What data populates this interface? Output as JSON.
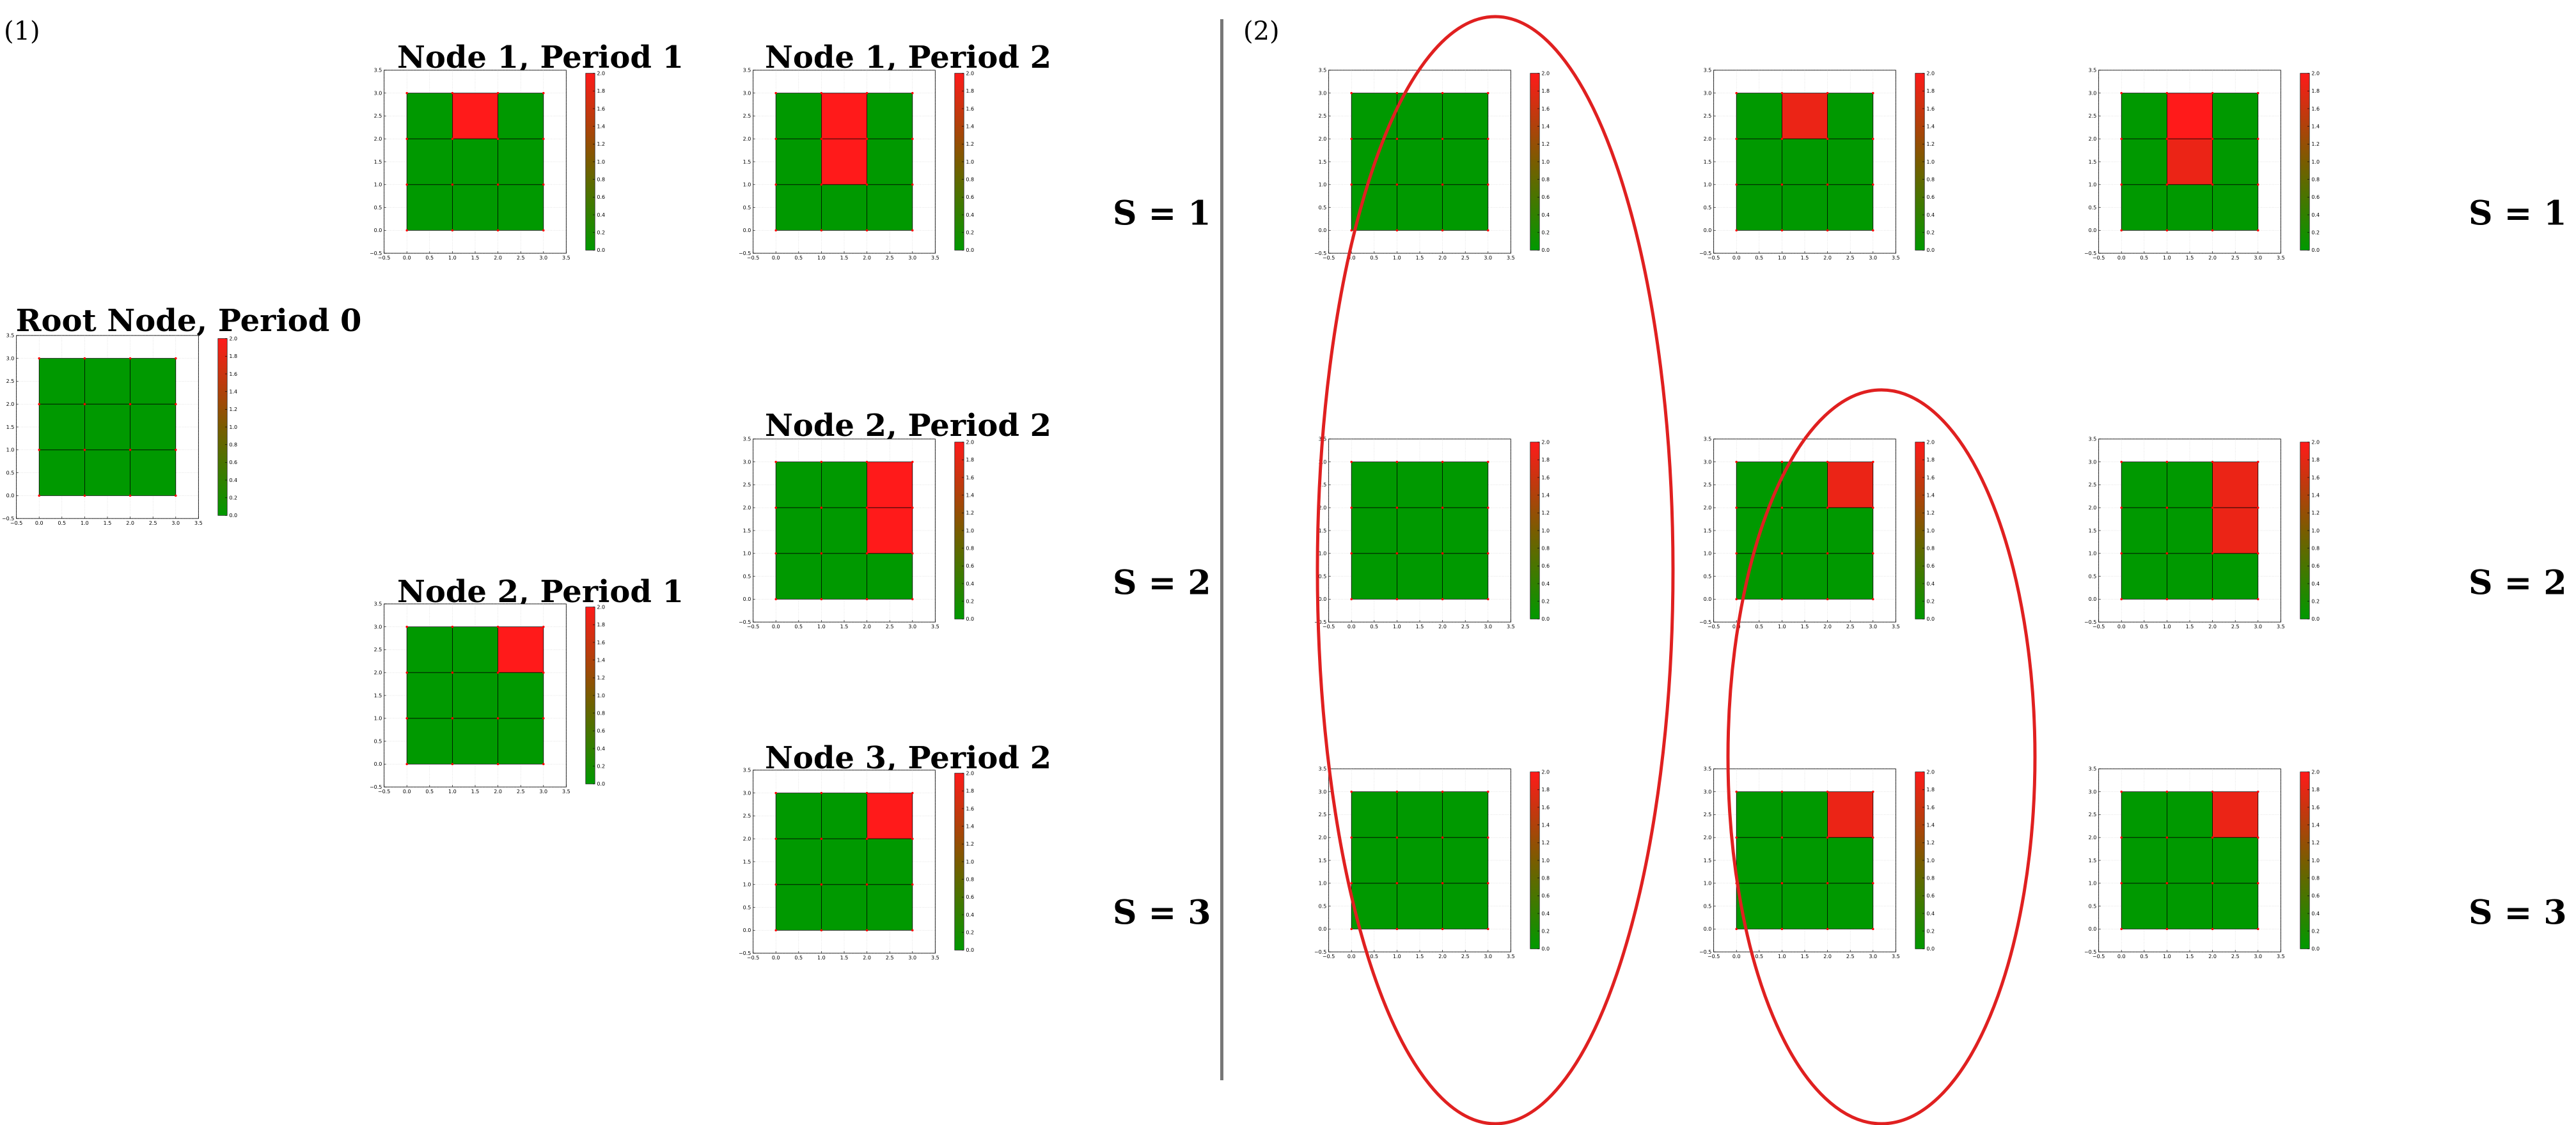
{
  "panels": {
    "left_label": "(1)",
    "right_label": "(2)"
  },
  "scenario_labels": [
    "S = 1",
    "S = 2",
    "S = 3"
  ],
  "colorbar": {
    "min": 0.0,
    "max": 2.0,
    "colors": {
      "low": "#009900",
      "mid": "#7a5c00",
      "high": "#ff1a1a"
    },
    "ticks": [
      "0.0",
      "0.2",
      "0.4",
      "0.6",
      "0.8",
      "1.0",
      "1.2",
      "1.4",
      "1.6",
      "1.8",
      "2.0"
    ]
  },
  "grid_colors": {
    "healthy": "#009900",
    "failed": "#ff0000",
    "node_point": "#ff0000",
    "grid_line": "#000000"
  },
  "chart_data": [
    {
      "type": "heatmap",
      "title": "Root Node, Period 0",
      "xlim": [
        -0.5,
        3.5
      ],
      "ylim": [
        -0.5,
        3.5
      ],
      "grid": true,
      "x_ticks": [
        "−0.5",
        "0.0",
        "0.5",
        "1.0",
        "1.5",
        "2.0",
        "2.5",
        "3.0",
        "3.5"
      ],
      "y_ticks": [
        "−0.5",
        "0.0",
        "0.5",
        "1.0",
        "1.5",
        "2.0",
        "2.5",
        "3.0",
        "3.5"
      ],
      "values": [
        [
          0,
          0,
          0
        ],
        [
          0,
          0,
          0
        ],
        [
          0,
          0,
          0
        ]
      ]
    },
    {
      "type": "heatmap",
      "title": "Node 1, Period 1",
      "xlim": [
        -0.5,
        3.5
      ],
      "ylim": [
        -0.5,
        3.5
      ],
      "grid": true,
      "x_ticks": [
        "−0.5",
        "0.0",
        "0.5",
        "1.0",
        "1.5",
        "2.0",
        "2.5",
        "3.0",
        "3.5"
      ],
      "y_ticks": [
        "−0.5",
        "0.0",
        "0.5",
        "1.0",
        "1.5",
        "2.0",
        "2.5",
        "3.0",
        "3.5"
      ],
      "values": [
        [
          0,
          2,
          0
        ],
        [
          0,
          0,
          0
        ],
        [
          0,
          0,
          0
        ]
      ]
    },
    {
      "type": "heatmap",
      "title": "Node 2, Period 1",
      "xlim": [
        -0.5,
        3.5
      ],
      "ylim": [
        -0.5,
        3.5
      ],
      "grid": true,
      "x_ticks": [
        "−0.5",
        "0.0",
        "0.5",
        "1.0",
        "1.5",
        "2.0",
        "2.5",
        "3.0",
        "3.5"
      ],
      "y_ticks": [
        "−0.5",
        "0.0",
        "0.5",
        "1.0",
        "1.5",
        "2.0",
        "2.5",
        "3.0",
        "3.5"
      ],
      "values": [
        [
          0,
          0,
          2
        ],
        [
          0,
          0,
          0
        ],
        [
          0,
          0,
          0
        ]
      ]
    },
    {
      "type": "heatmap",
      "title": "Node 1, Period 2",
      "xlim": [
        -0.5,
        3.5
      ],
      "ylim": [
        -0.5,
        3.5
      ],
      "grid": true,
      "x_ticks": [
        "−0.5",
        "0.0",
        "0.5",
        "1.0",
        "1.5",
        "2.0",
        "2.5",
        "3.0",
        "3.5"
      ],
      "y_ticks": [
        "−0.5",
        "0.0",
        "0.5",
        "1.0",
        "1.5",
        "2.0",
        "2.5",
        "3.0",
        "3.5"
      ],
      "values": [
        [
          0,
          2,
          0
        ],
        [
          0,
          2,
          0
        ],
        [
          0,
          0,
          0
        ]
      ]
    },
    {
      "type": "heatmap",
      "title": "Node 2, Period 2",
      "xlim": [
        -0.5,
        3.5
      ],
      "ylim": [
        -0.5,
        3.5
      ],
      "grid": true,
      "x_ticks": [
        "−0.5",
        "0.0",
        "0.5",
        "1.0",
        "1.5",
        "2.0",
        "2.5",
        "3.0",
        "3.5"
      ],
      "y_ticks": [
        "−0.5",
        "0.0",
        "0.5",
        "1.0",
        "1.5",
        "2.0",
        "2.5",
        "3.0",
        "3.5"
      ],
      "values": [
        [
          0,
          0,
          2
        ],
        [
          0,
          0,
          2
        ],
        [
          0,
          0,
          0
        ]
      ]
    },
    {
      "type": "heatmap",
      "title": "Node 3, Period 2",
      "xlim": [
        -0.5,
        3.5
      ],
      "ylim": [
        -0.5,
        3.5
      ],
      "grid": true,
      "x_ticks": [
        "−0.5",
        "0.0",
        "0.5",
        "1.0",
        "1.5",
        "2.0",
        "2.5",
        "3.0",
        "3.5"
      ],
      "y_ticks": [
        "−0.5",
        "0.0",
        "0.5",
        "1.0",
        "1.5",
        "2.0",
        "2.5",
        "3.0",
        "3.5"
      ],
      "values": [
        [
          0,
          0,
          2
        ],
        [
          0,
          0,
          0
        ],
        [
          0,
          0,
          0
        ]
      ]
    },
    {
      "type": "heatmap",
      "title": "",
      "scenario": "S = 1",
      "period": 0,
      "xlim": [
        -0.5,
        3.5
      ],
      "ylim": [
        -0.5,
        3.5
      ],
      "grid": true,
      "x_ticks": [
        "−0.5",
        "0.0",
        "0.5",
        "1.0",
        "1.5",
        "2.0",
        "2.5",
        "3.0",
        "3.5"
      ],
      "y_ticks": [
        "−0.5",
        "0.0",
        "0.5",
        "1.0",
        "1.5",
        "2.0",
        "2.5",
        "3.0",
        "3.5"
      ],
      "values": [
        [
          0,
          0,
          0
        ],
        [
          0,
          0,
          0
        ],
        [
          0,
          0,
          0
        ]
      ]
    },
    {
      "type": "heatmap",
      "title": "",
      "scenario": "S = 1",
      "period": 1,
      "xlim": [
        -0.5,
        3.5
      ],
      "ylim": [
        -0.5,
        3.5
      ],
      "grid": true,
      "x_ticks": [
        "−0.5",
        "0.0",
        "0.5",
        "1.0",
        "1.5",
        "2.0",
        "2.5",
        "3.0",
        "3.5"
      ],
      "y_ticks": [
        "−0.5",
        "0.0",
        "0.5",
        "1.0",
        "1.5",
        "2.0",
        "2.5",
        "3.0",
        "3.5"
      ],
      "values": [
        [
          0,
          1.85,
          0
        ],
        [
          0,
          0,
          0
        ],
        [
          0,
          0,
          0
        ]
      ]
    },
    {
      "type": "heatmap",
      "title": "",
      "scenario": "S = 1",
      "period": 2,
      "xlim": [
        -0.5,
        3.5
      ],
      "ylim": [
        -0.5,
        3.5
      ],
      "grid": true,
      "x_ticks": [
        "−0.5",
        "0.0",
        "0.5",
        "1.0",
        "1.5",
        "2.0",
        "2.5",
        "3.0",
        "3.5"
      ],
      "y_ticks": [
        "−0.5",
        "0.0",
        "0.5",
        "1.0",
        "1.5",
        "2.0",
        "2.5",
        "3.0",
        "3.5"
      ],
      "values": [
        [
          0,
          2,
          0
        ],
        [
          0,
          1.85,
          0
        ],
        [
          0,
          0,
          0
        ]
      ]
    },
    {
      "type": "heatmap",
      "title": "",
      "scenario": "S = 2",
      "period": 0,
      "xlim": [
        -0.5,
        3.5
      ],
      "ylim": [
        -0.5,
        3.5
      ],
      "grid": true,
      "x_ticks": [
        "−0.5",
        "0.0",
        "0.5",
        "1.0",
        "1.5",
        "2.0",
        "2.5",
        "3.0",
        "3.5"
      ],
      "y_ticks": [
        "−0.5",
        "0.0",
        "0.5",
        "1.0",
        "1.5",
        "2.0",
        "2.5",
        "3.0",
        "3.5"
      ],
      "values": [
        [
          0,
          0,
          0
        ],
        [
          0,
          0,
          0
        ],
        [
          0,
          0,
          0
        ]
      ]
    },
    {
      "type": "heatmap",
      "title": "",
      "scenario": "S = 2",
      "period": 1,
      "xlim": [
        -0.5,
        3.5
      ],
      "ylim": [
        -0.5,
        3.5
      ],
      "grid": true,
      "x_ticks": [
        "−0.5",
        "0.0",
        "0.5",
        "1.0",
        "1.5",
        "2.0",
        "2.5",
        "3.0",
        "3.5"
      ],
      "y_ticks": [
        "−0.5",
        "0.0",
        "0.5",
        "1.0",
        "1.5",
        "2.0",
        "2.5",
        "3.0",
        "3.5"
      ],
      "values": [
        [
          0,
          0,
          1.85
        ],
        [
          0,
          0,
          0
        ],
        [
          0,
          0,
          0
        ]
      ]
    },
    {
      "type": "heatmap",
      "title": "",
      "scenario": "S = 2",
      "period": 2,
      "xlim": [
        -0.5,
        3.5
      ],
      "ylim": [
        -0.5,
        3.5
      ],
      "grid": true,
      "x_ticks": [
        "−0.5",
        "0.0",
        "0.5",
        "1.0",
        "1.5",
        "2.0",
        "2.5",
        "3.0",
        "3.5"
      ],
      "y_ticks": [
        "−0.5",
        "0.0",
        "0.5",
        "1.0",
        "1.5",
        "2.0",
        "2.5",
        "3.0",
        "3.5"
      ],
      "values": [
        [
          0,
          0,
          1.85
        ],
        [
          0,
          0,
          1.85
        ],
        [
          0,
          0,
          0
        ]
      ]
    },
    {
      "type": "heatmap",
      "title": "",
      "scenario": "S = 3",
      "period": 0,
      "xlim": [
        -0.5,
        3.5
      ],
      "ylim": [
        -0.5,
        3.5
      ],
      "grid": true,
      "x_ticks": [
        "−0.5",
        "0.0",
        "0.5",
        "1.0",
        "1.5",
        "2.0",
        "2.5",
        "3.0",
        "3.5"
      ],
      "y_ticks": [
        "−0.5",
        "0.0",
        "0.5",
        "1.0",
        "1.5",
        "2.0",
        "2.5",
        "3.0",
        "3.5"
      ],
      "values": [
        [
          0,
          0,
          0
        ],
        [
          0,
          0,
          0
        ],
        [
          0,
          0,
          0
        ]
      ]
    },
    {
      "type": "heatmap",
      "title": "",
      "scenario": "S = 3",
      "period": 1,
      "xlim": [
        -0.5,
        3.5
      ],
      "ylim": [
        -0.5,
        3.5
      ],
      "grid": true,
      "x_ticks": [
        "−0.5",
        "0.0",
        "0.5",
        "1.0",
        "1.5",
        "2.0",
        "2.5",
        "3.0",
        "3.5"
      ],
      "y_ticks": [
        "−0.5",
        "0.0",
        "0.5",
        "1.0",
        "1.5",
        "2.0",
        "2.5",
        "3.0",
        "3.5"
      ],
      "values": [
        [
          0,
          0,
          1.85
        ],
        [
          0,
          0,
          0
        ],
        [
          0,
          0,
          0
        ]
      ]
    },
    {
      "type": "heatmap",
      "title": "",
      "scenario": "S = 3",
      "period": 2,
      "xlim": [
        -0.5,
        3.5
      ],
      "ylim": [
        -0.5,
        3.5
      ],
      "grid": true,
      "x_ticks": [
        "−0.5",
        "0.0",
        "0.5",
        "1.0",
        "1.5",
        "2.0",
        "2.5",
        "3.0",
        "3.5"
      ],
      "y_ticks": [
        "−0.5",
        "0.0",
        "0.5",
        "1.0",
        "1.5",
        "2.0",
        "2.5",
        "3.0",
        "3.5"
      ],
      "values": [
        [
          0,
          0,
          1.85
        ],
        [
          0,
          0,
          0
        ],
        [
          0,
          0,
          0
        ]
      ]
    }
  ]
}
